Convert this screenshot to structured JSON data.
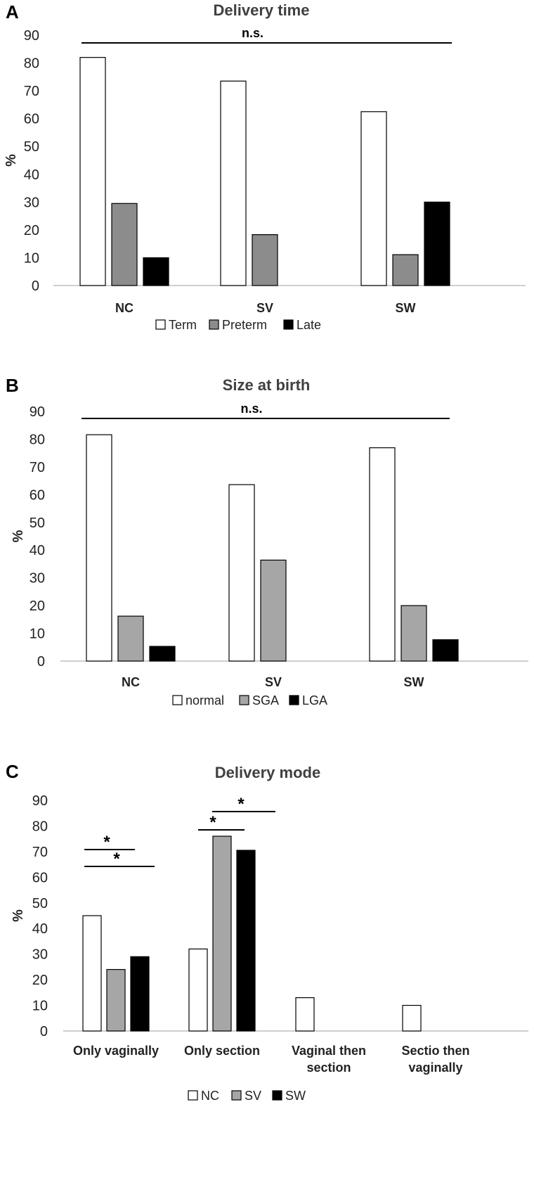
{
  "figure": {
    "panels": [
      "A",
      "B",
      "C"
    ]
  },
  "chart_data": [
    {
      "type": "bar",
      "panel": "A",
      "title": "Delivery time",
      "ylabel": "%",
      "xlabel": "",
      "ylim": [
        0,
        90
      ],
      "yticks": [
        0,
        10,
        20,
        30,
        40,
        50,
        60,
        70,
        80,
        90
      ],
      "categories": [
        "NC",
        "SV",
        "SW"
      ],
      "series": [
        {
          "name": "Term",
          "color": "#ffffff",
          "values": [
            82,
            73.5,
            62.5
          ]
        },
        {
          "name": "Preterm",
          "color": "#8c8c8c",
          "values": [
            29.5,
            18.3,
            11.1
          ]
        },
        {
          "name": "Late",
          "color": "#000000",
          "values": [
            10,
            0,
            30
          ]
        }
      ],
      "legend_position": "bottom",
      "significance": [
        {
          "label": "n.s.",
          "span": "all"
        }
      ]
    },
    {
      "type": "bar",
      "panel": "B",
      "title": "Size at birth",
      "ylabel": "%",
      "xlabel": "",
      "ylim": [
        0,
        90
      ],
      "yticks": [
        0,
        10,
        20,
        30,
        40,
        50,
        60,
        70,
        80,
        90
      ],
      "categories": [
        "NC",
        "SV",
        "SW"
      ],
      "series": [
        {
          "name": "normal",
          "color": "#ffffff",
          "values": [
            81.6,
            63.6,
            76.9
          ]
        },
        {
          "name": "SGA",
          "color": "#a6a6a6",
          "values": [
            16.2,
            36.4,
            20
          ]
        },
        {
          "name": "LGA",
          "color": "#000000",
          "values": [
            5.3,
            0,
            7.7
          ]
        }
      ],
      "legend_position": "bottom",
      "significance": [
        {
          "label": "n.s.",
          "span": "all"
        }
      ]
    },
    {
      "type": "bar",
      "panel": "C",
      "title": "Delivery mode",
      "ylabel": "%",
      "xlabel": "",
      "ylim": [
        0,
        90
      ],
      "yticks": [
        0,
        10,
        20,
        30,
        40,
        50,
        60,
        70,
        80,
        90
      ],
      "categories": [
        [
          "Only vaginally"
        ],
        [
          "Only section"
        ],
        [
          "Vaginal then",
          "section"
        ],
        [
          "Sectio then",
          "vaginally"
        ]
      ],
      "series": [
        {
          "name": "NC",
          "color": "#ffffff",
          "values": [
            45,
            32,
            13,
            10
          ]
        },
        {
          "name": "SV",
          "color": "#a6a6a6",
          "values": [
            24,
            76,
            0,
            0
          ]
        },
        {
          "name": "SW",
          "color": "#000000",
          "values": [
            29,
            70.5,
            0,
            0
          ]
        }
      ],
      "legend_position": "bottom",
      "significance": [
        {
          "label": "*",
          "category": 0,
          "from_series": 0,
          "to_series": 1
        },
        {
          "label": "*",
          "category": 0,
          "from_series": 0,
          "to_series": 2
        },
        {
          "label": "*",
          "category": 1,
          "from_series": 0,
          "to_series": 1
        },
        {
          "label": "*",
          "category": 1,
          "from_series": 0,
          "to_series": 2
        }
      ]
    }
  ]
}
